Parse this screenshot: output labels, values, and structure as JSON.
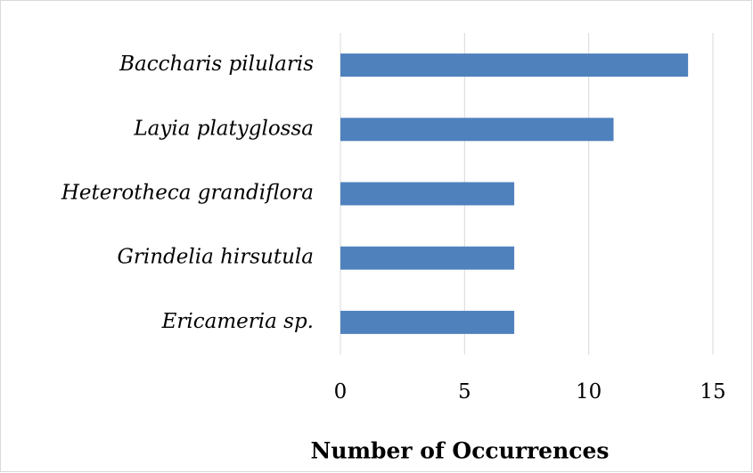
{
  "chart_data": {
    "type": "bar",
    "orientation": "horizontal",
    "x_label": "Number of Occurrences",
    "categories": [
      "Baccharis pilularis",
      "Layia platyglossa",
      "Heterotheca grandiflora",
      "Grindelia hirsutula",
      "Ericameria sp."
    ],
    "values": [
      14,
      11,
      7,
      7,
      7
    ],
    "color": "#4f81bd",
    "xlim": [
      0,
      15
    ],
    "xticks": [
      0,
      5,
      10,
      15
    ],
    "grid": true
  }
}
